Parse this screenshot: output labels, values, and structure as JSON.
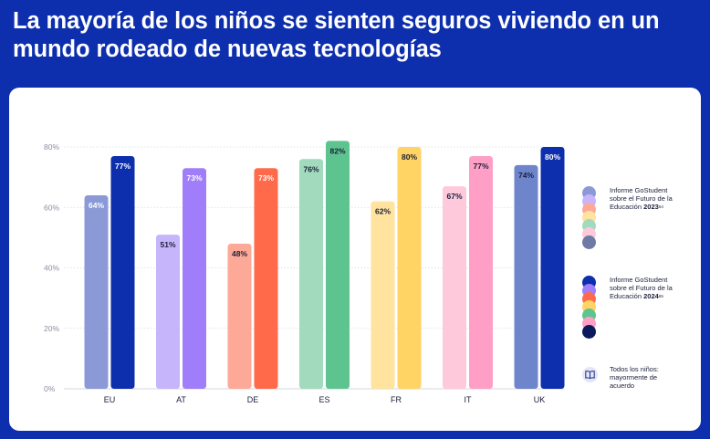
{
  "title": "La mayoría de los niños se sienten seguros viviendo en un mundo rodeado de nuevas tecnologías",
  "chart_data": {
    "type": "bar",
    "title": "La mayoría de los niños se sienten seguros viviendo en un mundo rodeado de nuevas tecnologías",
    "categories": [
      "EU",
      "AT",
      "DE",
      "ES",
      "FR",
      "IT",
      "UK"
    ],
    "y_ticks": [
      "0%",
      "20%",
      "40%",
      "60%",
      "80%"
    ],
    "ylim": [
      0,
      80
    ],
    "grid": true,
    "legend_position": "right",
    "series": [
      {
        "name": "2023",
        "values": [
          64,
          51,
          48,
          76,
          62,
          67,
          74
        ],
        "labels": [
          "64%",
          "51%",
          "48%",
          "76%",
          "62%",
          "67%",
          "74%"
        ],
        "colors": [
          "#8b9ad6",
          "#c7b5fb",
          "#fda997",
          "#a1dabc",
          "#ffe39f",
          "#ffc9dc",
          "#6e85cc"
        ],
        "label_colors": [
          "#ffffff",
          "#1a1f3a",
          "#1a1f3a",
          "#1a1f3a",
          "#1a1f3a",
          "#1a1f3a",
          "#1a1f3a"
        ]
      },
      {
        "name": "2024",
        "values": [
          77,
          73,
          73,
          82,
          80,
          77,
          80
        ],
        "labels": [
          "77%",
          "73%",
          "73%",
          "82%",
          "80%",
          "77%",
          "80%"
        ],
        "colors": [
          "#0d2fad",
          "#a07ef9",
          "#ff6a4b",
          "#5dc48f",
          "#ffd364",
          "#ff9fc6",
          "#0d2fad"
        ],
        "label_colors": [
          "#ffffff",
          "#ffffff",
          "#ffffff",
          "#1a1f3a",
          "#1a1f3a",
          "#1a1f3a",
          "#ffffff"
        ]
      }
    ]
  },
  "legend": {
    "group1": {
      "text": "Informe GoStudent sobre el Futuro de la Educación",
      "year": "2023",
      "sup": "64",
      "colors": [
        "#8b9ad6",
        "#c7b5fb",
        "#fda997",
        "#ffe39f",
        "#a1dabc",
        "#ffc9dc",
        "#6e7aa6"
      ]
    },
    "group2": {
      "text": "Informe GoStudent sobre el Futuro de la Educación",
      "year": "2024",
      "sup": "65",
      "colors": [
        "#0d2fad",
        "#a07ef9",
        "#ff6a4b",
        "#ffd364",
        "#5dc48f",
        "#ff9fc6",
        "#0b1a5e"
      ]
    },
    "group3": {
      "text": "Todos los niños: mayormente de acuerdo",
      "icon": "book-icon"
    }
  },
  "colors": {
    "background": "#0d2fad",
    "card": "#ffffff",
    "grid": "#d9dbe4",
    "tick_text": "#8a8fa3"
  }
}
